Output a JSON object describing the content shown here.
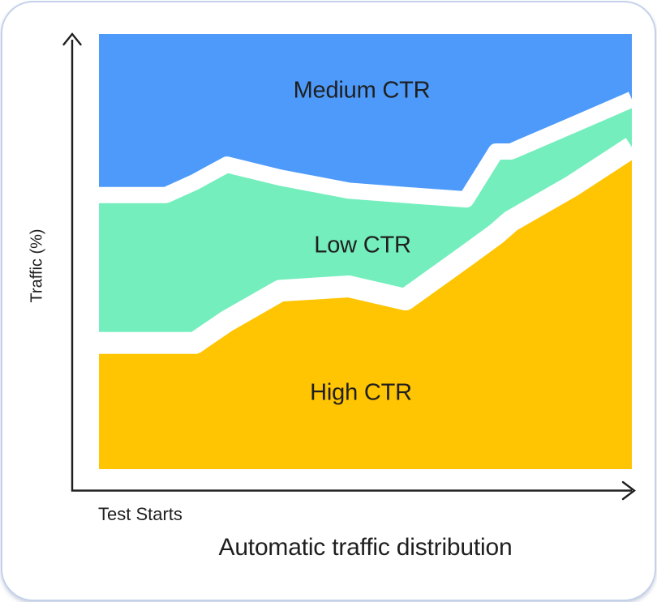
{
  "title": "Automatic traffic distribution",
  "axes": {
    "y_label": "Traffic (%)",
    "x_origin_label": "Test Starts"
  },
  "area_labels": {
    "medium": "Medium CTR",
    "low": "Low CTR",
    "high": "High CTR"
  },
  "colors": {
    "medium_ctr": "#4d9afa",
    "low_ctr": "#74eebd",
    "high_ctr": "#ffc402",
    "text": "#1f1f1f",
    "axis": "#1f1f1f",
    "gap": "#ffffff",
    "card_border": "#c5d1ea",
    "card_background": "#ffffff"
  },
  "chart_data": {
    "type": "area",
    "stacked": true,
    "title": "Automatic traffic distribution",
    "xlabel": "",
    "ylabel": "Traffic (%)",
    "x_axis": {
      "label_at_origin": "Test Starts",
      "ticks_visible": false,
      "range_normalized": [
        0,
        1
      ]
    },
    "y_axis": {
      "label": "Traffic (%)",
      "units": "percent",
      "range": [
        0,
        100
      ],
      "ticks_visible": false
    },
    "grid": false,
    "legend": "labels-inside-areas",
    "x": [
      0,
      0.126,
      0.18,
      0.24,
      0.34,
      0.469,
      0.575,
      0.689,
      0.745,
      0.773,
      0.887,
      1
    ],
    "series": [
      {
        "name": "High CTR",
        "color": "#ffc402",
        "values": [
          29,
          29,
          29,
          34,
          41,
          42,
          39,
          49,
          54,
          57,
          65,
          74
        ]
      },
      {
        "name": "Low CTR",
        "color": "#74eebd",
        "values": [
          34,
          34,
          37,
          36,
          26,
          22,
          24,
          13,
          19,
          16,
          14,
          11
        ]
      },
      {
        "name": "Medium CTR",
        "color": "#4d9afa",
        "values": [
          37,
          37,
          34,
          30,
          33,
          36,
          37,
          38,
          27,
          27,
          21,
          15
        ]
      }
    ]
  }
}
